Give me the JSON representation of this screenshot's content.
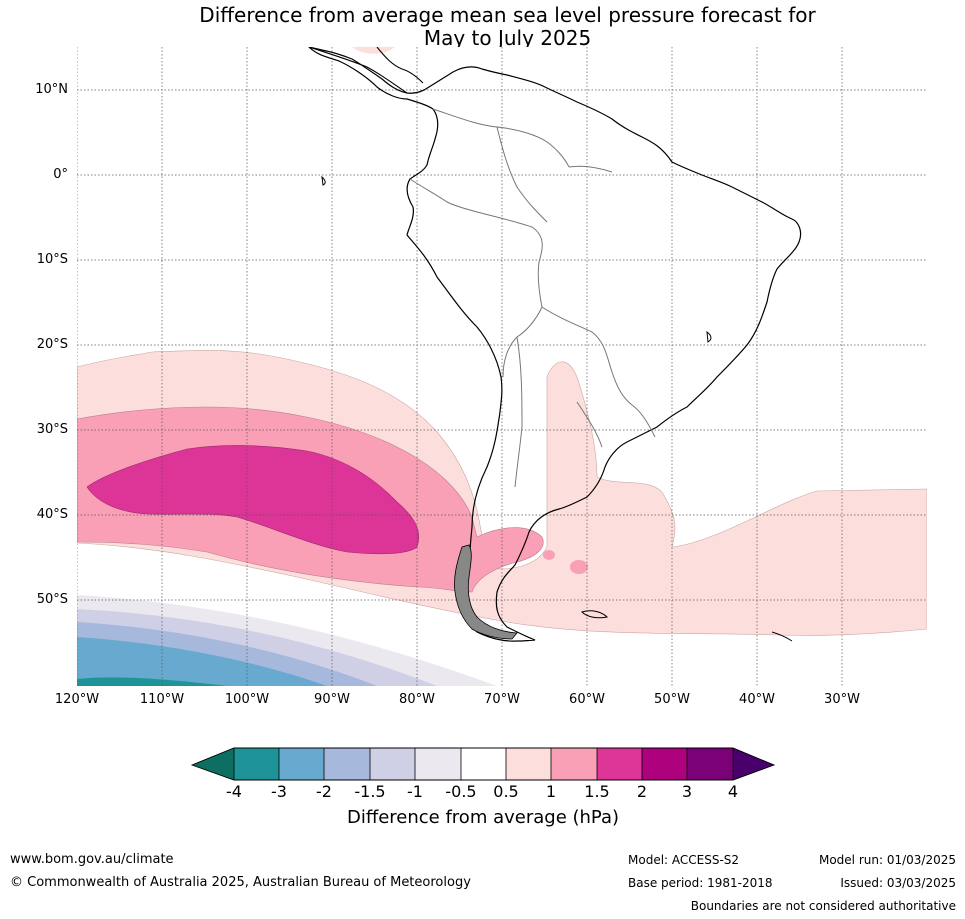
{
  "title_line1": "Difference from average mean sea level pressure forecast for",
  "title_line2": "May to July 2025",
  "latitude_labels": [
    "10°N",
    "0°",
    "10°S",
    "20°S",
    "30°S",
    "40°S",
    "50°S"
  ],
  "longitude_labels": [
    "120°W",
    "110°W",
    "100°W",
    "90°W",
    "80°W",
    "70°W",
    "60°W",
    "50°W",
    "40°W",
    "30°W"
  ],
  "colorbar": {
    "title": "Difference from average (hPa)",
    "ticks": [
      "-4",
      "-3",
      "-2",
      "-1.5",
      "-1",
      "-0.5",
      "0.5",
      "1",
      "1.5",
      "2",
      "3",
      "4"
    ],
    "colors": [
      "#0d6e62",
      "#1f9498",
      "#68a9cf",
      "#a6b9dc",
      "#cfd0e6",
      "#ece8f0",
      "#ffffff",
      "#fcdfdc",
      "#f99fb6",
      "#dd3497",
      "#ae017e",
      "#7a0177",
      "#49006a"
    ]
  },
  "footer": {
    "website": "www.bom.gov.au/climate",
    "copyright": "© Commonwealth of Australia 2025, Australian Bureau of Meteorology",
    "model": "Model: ACCESS-S2",
    "base_period": "Base period: 1981-2018",
    "model_run": "Model run: 01/03/2025",
    "issued": "Issued: 03/03/2025",
    "disclaimer": "Boundaries are not considered authoritative"
  }
}
